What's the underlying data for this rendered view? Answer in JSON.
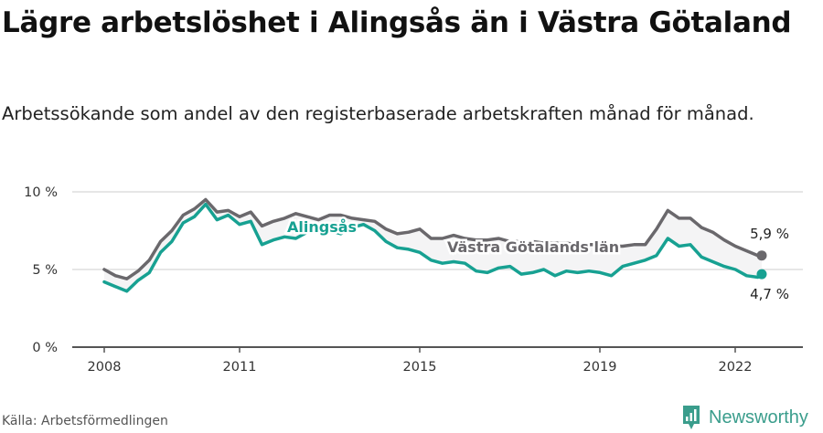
{
  "header": {
    "title": "Lägre arbetslöshet i Alingsås än i Västra Götaland",
    "subtitle": "Arbetssökande som andel av den registerbaserade arbetskraften månad för månad."
  },
  "footer": {
    "source": "Källa: Arbetsförmedlingen",
    "brand": "Newsworthy",
    "brand_icon": "bar-chart-speech-bubble-icon"
  },
  "colors": {
    "alingsas": "#17a192",
    "vastra_gotaland": "#6a686c",
    "band_fill": "#f4f4f5",
    "grid": "#dddddd",
    "axis": "#555555",
    "brand": "#3a9d8c"
  },
  "chart_data": {
    "type": "line",
    "title": "Lägre arbetslöshet i Alingsås än i Västra Götaland",
    "subtitle": "Arbetssökande som andel av den registerbaserade arbetskraften månad för månad.",
    "xlabel": "",
    "ylabel": "",
    "ylim": [
      0,
      10
    ],
    "y_ticks": [
      "0 %",
      "5 %",
      "10 %"
    ],
    "x_ticks": [
      "2008",
      "2011",
      "2015",
      "2019",
      "2022"
    ],
    "grid": true,
    "legend_position": "inline labels",
    "x": [
      "2008-01",
      "2008-04",
      "2008-07",
      "2008-10",
      "2009-01",
      "2009-04",
      "2009-07",
      "2009-10",
      "2010-01",
      "2010-04",
      "2010-07",
      "2010-10",
      "2011-01",
      "2011-04",
      "2011-07",
      "2011-10",
      "2012-01",
      "2012-04",
      "2012-07",
      "2012-10",
      "2013-01",
      "2013-04",
      "2013-07",
      "2013-10",
      "2014-01",
      "2014-04",
      "2014-07",
      "2014-10",
      "2015-01",
      "2015-04",
      "2015-07",
      "2015-10",
      "2016-01",
      "2016-04",
      "2016-07",
      "2016-10",
      "2017-01",
      "2017-04",
      "2017-07",
      "2017-10",
      "2018-01",
      "2018-04",
      "2018-07",
      "2018-10",
      "2019-01",
      "2019-04",
      "2019-07",
      "2019-10",
      "2020-01",
      "2020-04",
      "2020-07",
      "2020-10",
      "2021-01",
      "2021-04",
      "2021-07",
      "2021-10",
      "2022-01",
      "2022-04",
      "2022-07",
      "2022-08"
    ],
    "series": [
      {
        "name": "Västra Götalands län",
        "color": "#6a686c",
        "values": [
          5.0,
          4.6,
          4.4,
          4.9,
          5.6,
          6.8,
          7.5,
          8.5,
          8.9,
          9.5,
          8.7,
          8.8,
          8.4,
          8.7,
          7.8,
          8.1,
          8.3,
          8.6,
          8.4,
          8.2,
          8.5,
          8.5,
          8.3,
          8.2,
          8.1,
          7.6,
          7.3,
          7.4,
          7.6,
          7.0,
          7.0,
          7.2,
          7.0,
          6.9,
          6.9,
          7.0,
          6.8,
          6.8,
          6.8,
          6.7,
          6.7,
          6.7,
          6.6,
          6.6,
          6.6,
          6.5,
          6.5,
          6.6,
          6.6,
          7.6,
          8.8,
          8.3,
          8.3,
          7.7,
          7.4,
          6.9,
          6.5,
          6.2,
          5.9,
          5.9
        ]
      },
      {
        "name": "Alingsås",
        "color": "#17a192",
        "values": [
          4.2,
          3.9,
          3.6,
          4.3,
          4.8,
          6.1,
          6.8,
          8.0,
          8.4,
          9.2,
          8.2,
          8.5,
          7.9,
          8.1,
          6.6,
          6.9,
          7.1,
          7.0,
          7.4,
          7.6,
          7.5,
          7.3,
          7.7,
          7.9,
          7.5,
          6.8,
          6.4,
          6.3,
          6.1,
          5.6,
          5.4,
          5.5,
          5.4,
          4.9,
          4.8,
          5.1,
          5.2,
          4.7,
          4.8,
          5.0,
          4.6,
          4.9,
          4.8,
          4.9,
          4.8,
          4.6,
          5.2,
          5.4,
          5.6,
          5.9,
          7.0,
          6.5,
          6.6,
          5.8,
          5.5,
          5.2,
          5.0,
          4.6,
          4.5,
          4.7
        ]
      }
    ],
    "annotations": [
      {
        "text": "Alingsås",
        "series": "Alingsås"
      },
      {
        "text": "Västra Götalands län",
        "series": "Västra Götalands län"
      },
      {
        "text": "5,9 %",
        "series": "Västra Götalands län",
        "position": "end"
      },
      {
        "text": "4,7 %",
        "series": "Alingsås",
        "position": "end"
      }
    ]
  },
  "labels": {
    "y_ticks": [
      "10 %",
      "5 %",
      "0 %"
    ],
    "x_ticks": [
      "2008",
      "2011",
      "2015",
      "2019",
      "2022"
    ],
    "series_a": "Alingsås",
    "series_b": "Västra Götalands län",
    "end_a": "4,7 %",
    "end_b": "5,9 %"
  }
}
